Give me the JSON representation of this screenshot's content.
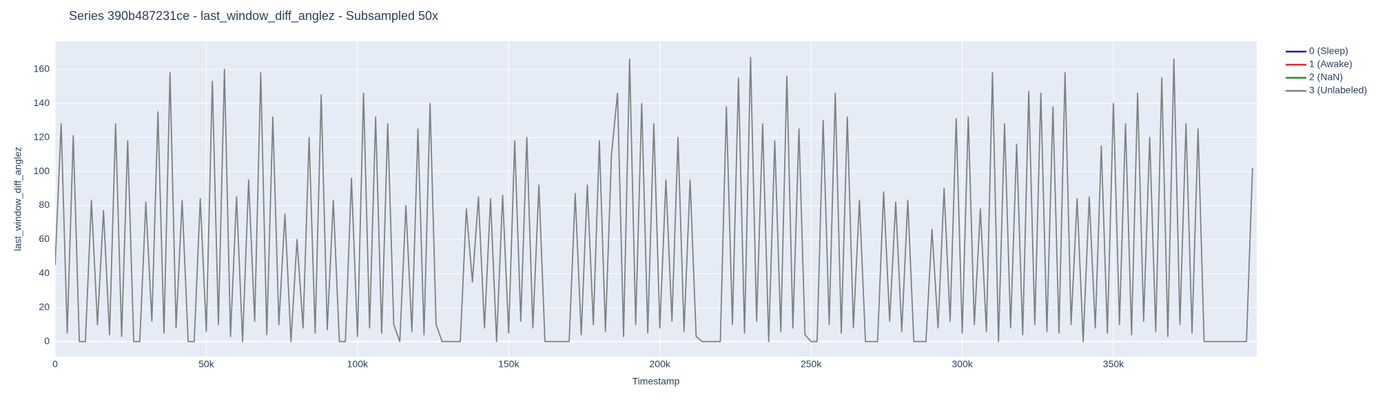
{
  "chart_data": {
    "type": "line",
    "title": "Series 390b487231ce - last_window_diff_anglez - Subsampled 50x",
    "x_label": "Timestamp",
    "y_label": "last_window_diff_anglez",
    "x": [
      0,
      2000,
      4000,
      6000,
      8000,
      10000,
      12000,
      14000,
      16000,
      18000,
      20000,
      22000,
      24000,
      26000,
      28000,
      30000,
      32000,
      34000,
      36000,
      38000,
      40000,
      42000,
      44000,
      46000,
      48000,
      50000,
      52000,
      54000,
      56000,
      58000,
      60000,
      62000,
      64000,
      66000,
      68000,
      70000,
      72000,
      74000,
      76000,
      78000,
      80000,
      82000,
      84000,
      86000,
      88000,
      90000,
      92000,
      94000,
      96000,
      98000,
      100000,
      102000,
      104000,
      106000,
      108000,
      110000,
      112000,
      114000,
      116000,
      118000,
      120000,
      122000,
      124000,
      126000,
      128000,
      130000,
      132000,
      134000,
      136000,
      138000,
      140000,
      142000,
      144000,
      146000,
      148000,
      150000,
      152000,
      154000,
      156000,
      158000,
      160000,
      162000,
      164000,
      166000,
      168000,
      170000,
      172000,
      174000,
      176000,
      178000,
      180000,
      182000,
      184000,
      186000,
      188000,
      190000,
      192000,
      194000,
      196000,
      198000,
      200000,
      202000,
      204000,
      206000,
      208000,
      210000,
      212000,
      214000,
      216000,
      218000,
      220000,
      222000,
      224000,
      226000,
      228000,
      230000,
      232000,
      234000,
      236000,
      238000,
      240000,
      242000,
      244000,
      246000,
      248000,
      250000,
      252000,
      254000,
      256000,
      258000,
      260000,
      262000,
      264000,
      266000,
      268000,
      270000,
      272000,
      274000,
      276000,
      278000,
      280000,
      282000,
      284000,
      286000,
      288000,
      290000,
      292000,
      294000,
      296000,
      298000,
      300000,
      302000,
      304000,
      306000,
      308000,
      310000,
      312000,
      314000,
      316000,
      318000,
      320000,
      322000,
      324000,
      326000,
      328000,
      330000,
      332000,
      334000,
      336000,
      338000,
      340000,
      342000,
      344000,
      346000,
      348000,
      350000,
      352000,
      354000,
      356000,
      358000,
      360000,
      362000,
      364000,
      366000,
      368000,
      370000,
      372000,
      374000,
      376000,
      378000,
      380000,
      382000,
      384000,
      386000,
      388000,
      390000,
      392000,
      394000,
      396000
    ],
    "series": [
      {
        "name": "0 (Sleep)",
        "color": "#1f1fb4",
        "values": [
          null,
          null,
          null,
          null,
          null,
          null,
          null,
          null,
          null,
          null,
          null,
          null,
          null,
          null,
          null,
          null,
          null,
          null,
          null,
          null,
          null,
          null,
          null,
          null,
          null,
          null,
          null,
          null,
          null,
          null,
          null,
          null,
          null,
          null,
          null,
          null,
          null,
          null,
          null,
          null,
          null,
          null,
          null,
          null,
          null,
          null,
          null,
          null,
          null,
          null,
          null,
          null,
          null,
          null,
          null,
          null,
          null,
          null,
          null,
          null,
          null,
          null,
          null,
          null,
          null,
          null,
          null,
          null,
          null,
          null,
          null,
          null,
          null,
          null,
          null,
          null,
          null,
          null,
          null,
          null,
          null,
          null,
          null,
          null,
          null,
          null,
          null,
          null,
          null,
          null,
          null,
          null,
          null,
          null,
          null,
          null,
          null,
          null,
          null,
          null,
          null,
          null,
          null,
          null,
          null,
          null,
          null,
          null,
          null,
          null,
          null,
          null,
          null,
          null,
          null,
          null,
          null,
          null,
          null,
          null,
          null,
          null,
          null,
          null,
          null,
          null,
          null,
          null,
          null,
          null,
          null,
          null,
          null,
          null,
          null,
          null,
          null,
          null,
          null,
          null,
          null,
          null,
          null,
          null,
          null,
          null,
          null,
          null,
          null,
          null,
          null,
          null,
          null,
          null,
          null,
          null,
          null,
          null,
          null,
          null,
          null,
          null,
          null,
          null,
          null,
          null,
          null,
          null,
          null,
          null,
          null,
          null,
          null,
          null,
          null,
          null,
          null,
          null,
          null,
          null,
          null,
          null,
          null,
          null,
          null,
          null,
          null,
          null,
          null,
          null,
          null,
          null,
          null,
          null,
          null,
          null,
          null,
          null,
          null
        ]
      },
      {
        "name": "1 (Awake)",
        "color": "#e8252a",
        "values": [
          null,
          null,
          null,
          null,
          null,
          null,
          null,
          null,
          null,
          null,
          null,
          null,
          null,
          null,
          null,
          null,
          null,
          null,
          null,
          null,
          null,
          null,
          null,
          null,
          null,
          null,
          null,
          null,
          null,
          null,
          null,
          null,
          null,
          null,
          null,
          null,
          null,
          null,
          null,
          null,
          null,
          null,
          null,
          null,
          null,
          null,
          null,
          null,
          null,
          null,
          null,
          null,
          null,
          null,
          null,
          null,
          null,
          null,
          null,
          null,
          null,
          null,
          null,
          null,
          null,
          null,
          null,
          null,
          null,
          null,
          null,
          null,
          null,
          null,
          null,
          null,
          null,
          null,
          null,
          null,
          null,
          null,
          null,
          null,
          null,
          null,
          null,
          null,
          null,
          null,
          null,
          null,
          null,
          null,
          null,
          null,
          null,
          null,
          null,
          null,
          null,
          null,
          null,
          null,
          null,
          null,
          null,
          null,
          null,
          null,
          null,
          null,
          null,
          null,
          null,
          null,
          null,
          null,
          null,
          null,
          null,
          null,
          null,
          null,
          null,
          null,
          null,
          null,
          null,
          null,
          null,
          null,
          null,
          null,
          null,
          null,
          null,
          null,
          null,
          null,
          null,
          null,
          null,
          null,
          null,
          null,
          null,
          null,
          null,
          null,
          null,
          null,
          null,
          null,
          null,
          null,
          null,
          null,
          null,
          null,
          null,
          null,
          null,
          null,
          null,
          null,
          null,
          null,
          null,
          null,
          null,
          null,
          null,
          null,
          null,
          null,
          null,
          null,
          null,
          null,
          null,
          null,
          null,
          null,
          null,
          null,
          null,
          null,
          null,
          null,
          null,
          null,
          null,
          null,
          null,
          null,
          null,
          null,
          null
        ]
      },
      {
        "name": "2 (NaN)",
        "color": "#2a8a2a",
        "values": [
          null,
          null,
          null,
          null,
          null,
          null,
          null,
          null,
          null,
          null,
          null,
          null,
          null,
          null,
          null,
          null,
          null,
          null,
          null,
          null,
          null,
          null,
          null,
          null,
          null,
          null,
          null,
          null,
          null,
          null,
          null,
          null,
          null,
          null,
          null,
          null,
          null,
          null,
          null,
          null,
          null,
          null,
          null,
          null,
          null,
          null,
          null,
          null,
          null,
          null,
          null,
          null,
          null,
          null,
          null,
          null,
          null,
          null,
          null,
          null,
          null,
          null,
          null,
          null,
          null,
          null,
          null,
          null,
          null,
          null,
          null,
          null,
          null,
          null,
          null,
          null,
          null,
          null,
          null,
          null,
          null,
          null,
          null,
          null,
          null,
          null,
          null,
          null,
          null,
          null,
          null,
          null,
          null,
          null,
          null,
          null,
          null,
          null,
          null,
          null,
          null,
          null,
          null,
          null,
          null,
          null,
          null,
          null,
          null,
          null,
          null,
          null,
          null,
          null,
          null,
          null,
          null,
          null,
          null,
          null,
          null,
          null,
          null,
          null,
          null,
          null,
          null,
          null,
          null,
          null,
          null,
          null,
          null,
          null,
          null,
          null,
          null,
          null,
          null,
          null,
          null,
          null,
          null,
          null,
          null,
          null,
          null,
          null,
          null,
          null,
          null,
          null,
          null,
          null,
          null,
          null,
          null,
          null,
          null,
          null,
          null,
          null,
          null,
          null,
          null,
          null,
          null,
          null,
          null,
          null,
          null,
          null,
          null,
          null,
          null,
          null,
          null,
          null,
          null,
          null,
          null,
          null,
          null,
          null,
          null,
          null,
          null,
          null,
          null,
          null,
          null,
          null,
          null,
          null,
          null,
          null,
          null,
          null,
          null
        ]
      },
      {
        "name": "3 (Unlabeled)",
        "color": "#808080",
        "values": [
          45,
          128,
          5,
          121,
          0,
          0,
          83,
          10,
          77,
          4,
          128,
          3,
          118,
          0,
          0,
          82,
          12,
          135,
          5,
          158,
          8,
          83,
          0,
          0,
          84,
          6,
          153,
          10,
          160,
          3,
          85,
          0,
          95,
          12,
          158,
          4,
          132,
          10,
          75,
          0,
          60,
          8,
          120,
          5,
          145,
          7,
          83,
          0,
          0,
          96,
          3,
          146,
          8,
          132,
          5,
          128,
          10,
          0,
          80,
          6,
          125,
          4,
          140,
          10,
          0,
          0,
          0,
          0,
          78,
          35,
          85,
          8,
          84,
          0,
          86,
          5,
          118,
          12,
          120,
          8,
          92,
          0,
          0,
          0,
          0,
          0,
          87,
          4,
          92,
          10,
          118,
          6,
          110,
          146,
          3,
          166,
          10,
          140,
          5,
          128,
          8,
          95,
          12,
          120,
          6,
          95,
          3,
          0,
          0,
          0,
          0,
          138,
          10,
          155,
          5,
          167,
          12,
          128,
          0,
          118,
          6,
          156,
          8,
          125,
          4,
          0,
          0,
          130,
          10,
          146,
          5,
          132,
          8,
          83,
          0,
          0,
          0,
          88,
          12,
          82,
          6,
          83,
          0,
          0,
          0,
          66,
          8,
          90,
          12,
          131,
          5,
          132,
          10,
          78,
          6,
          158,
          0,
          128,
          8,
          116,
          4,
          147,
          10,
          146,
          6,
          138,
          5,
          158,
          10,
          84,
          0,
          85,
          8,
          115,
          5,
          140,
          10,
          128,
          4,
          146,
          12,
          120,
          6,
          155,
          3,
          166,
          10,
          128,
          5,
          125,
          0,
          0,
          0,
          0,
          0,
          0,
          0,
          0,
          102
        ]
      }
    ],
    "xlim": [
      0,
      397400
    ],
    "xticks": [
      0,
      {
        "value": 50000,
        "label": "50k"
      },
      {
        "value": 100000,
        "label": "100k"
      },
      {
        "value": 150000,
        "label": "150k"
      },
      {
        "value": 200000,
        "label": "200k"
      },
      {
        "value": 250000,
        "label": "250k"
      },
      {
        "value": 300000,
        "label": "300k"
      },
      {
        "value": 350000,
        "label": "350k"
      }
    ],
    "ylim": [
      -8.8,
      176.5
    ],
    "yticks": [
      0,
      20,
      40,
      60,
      80,
      100,
      120,
      140,
      160
    ],
    "grid": true,
    "legend": "right"
  }
}
